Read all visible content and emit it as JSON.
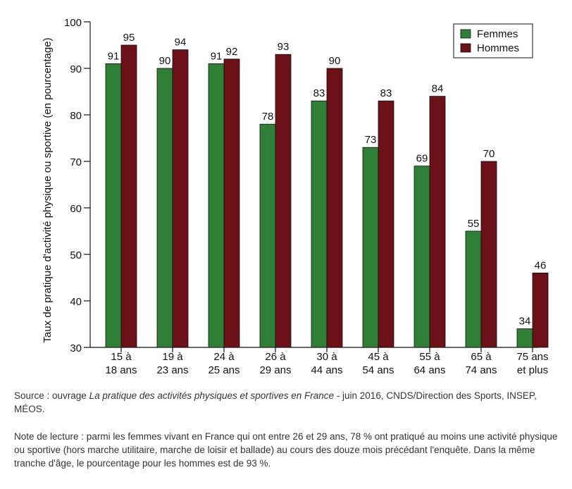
{
  "chart_data": {
    "type": "bar",
    "ylabel": "Taux de pratique d'activité physique ou sportive (en pourcentage)",
    "ylim": [
      30,
      100
    ],
    "yticks": [
      30,
      40,
      50,
      60,
      70,
      80,
      90,
      100
    ],
    "grid": false,
    "legend_position": "top-right",
    "categories": [
      [
        "15 à",
        "18 ans"
      ],
      [
        "19 à",
        "23 ans"
      ],
      [
        "24 à",
        "25 ans"
      ],
      [
        "26 à",
        "29 ans"
      ],
      [
        "30 à",
        "44 ans"
      ],
      [
        "45 à",
        "54 ans"
      ],
      [
        "55 à",
        "64 ans"
      ],
      [
        "65 à",
        "74 ans"
      ],
      [
        "75 ans",
        "et plus"
      ]
    ],
    "series": [
      {
        "name": "Femmes",
        "color": "#2f7f37",
        "values": [
          91,
          90,
          91,
          78,
          83,
          73,
          69,
          55,
          34
        ]
      },
      {
        "name": "Hommes",
        "color": "#6b1117",
        "values": [
          95,
          94,
          92,
          93,
          90,
          83,
          84,
          70,
          46
        ]
      }
    ]
  },
  "source": {
    "prefix": "Source : ouvrage ",
    "title": "La pratique des activités physiques et sportives en France",
    "suffix": " - juin 2016, CNDS/Direction des Sports, INSEP, MÉOS."
  },
  "note": "Note de lecture : parmi les femmes vivant en France qui ont entre 26 et 29 ans, 78 % ont pratiqué au moins une activité physique ou sportive (hors marche utilitaire, marche de loisir et ballade) au cours des douze mois précédant  l'enquête. Dans la même tranche d'âge, le pourcentage pour les hommes est de 93 %."
}
